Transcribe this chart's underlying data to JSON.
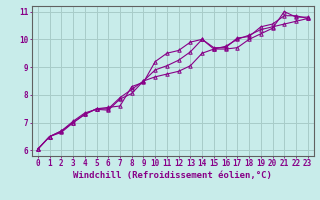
{
  "title": "",
  "xlabel": "Windchill (Refroidissement éolien,°C)",
  "ylabel": "",
  "bg_color": "#c8ecea",
  "grid_color": "#a8ccc8",
  "line_color": "#880088",
  "xlim": [
    -0.5,
    23.5
  ],
  "ylim": [
    5.8,
    11.2
  ],
  "xticks": [
    0,
    1,
    2,
    3,
    4,
    5,
    6,
    7,
    8,
    9,
    10,
    11,
    12,
    13,
    14,
    15,
    16,
    17,
    18,
    19,
    20,
    21,
    22,
    23
  ],
  "yticks": [
    6,
    7,
    8,
    9,
    10,
    11
  ],
  "series": [
    [
      6.05,
      6.5,
      6.7,
      7.0,
      7.3,
      7.5,
      7.5,
      7.9,
      8.2,
      8.5,
      8.65,
      8.75,
      8.85,
      9.05,
      9.5,
      9.65,
      9.75,
      10.0,
      10.15,
      10.35,
      10.45,
      10.55,
      10.65,
      10.75
    ],
    [
      6.05,
      6.5,
      6.65,
      7.0,
      7.3,
      7.5,
      7.55,
      7.6,
      8.3,
      8.45,
      9.2,
      9.5,
      9.6,
      9.9,
      10.0,
      9.65,
      9.65,
      9.7,
      10.0,
      10.2,
      10.4,
      11.0,
      10.8,
      10.8
    ],
    [
      6.05,
      6.5,
      6.7,
      7.05,
      7.35,
      7.48,
      7.45,
      7.85,
      8.05,
      8.5,
      8.9,
      9.05,
      9.25,
      9.55,
      10.0,
      9.7,
      9.7,
      10.05,
      10.1,
      10.45,
      10.55,
      10.85,
      10.85,
      10.75
    ]
  ],
  "marker": "^",
  "markersize": 2.5,
  "linewidth": 0.8,
  "xlabel_fontsize": 6.5,
  "tick_fontsize": 5.5
}
